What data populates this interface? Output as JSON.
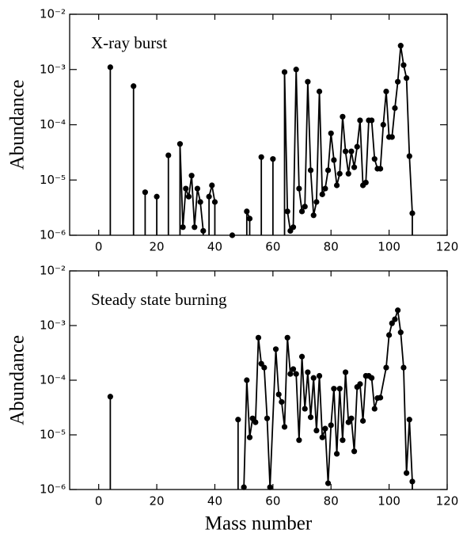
{
  "chart_data": [
    {
      "type": "line",
      "annotation": "X-ray burst",
      "ylabel": "Abundance",
      "log_y": true,
      "color": "#000000",
      "xlim": [
        -10,
        120
      ],
      "xticks": [
        0,
        20,
        40,
        60,
        80,
        100,
        120
      ],
      "ylim": [
        1e-06,
        0.01
      ],
      "yticks": [
        {
          "value": 1e-06,
          "label": "10⁻⁶"
        },
        {
          "value": 1e-05,
          "label": "10⁻⁵"
        },
        {
          "value": 0.0001,
          "label": "10⁻⁴"
        },
        {
          "value": 0.001,
          "label": "10⁻³"
        },
        {
          "value": 0.01,
          "label": "10⁻²"
        }
      ],
      "x": [
        4,
        8,
        12,
        14,
        16,
        18,
        20,
        22,
        24,
        26,
        28,
        29,
        30,
        31,
        32,
        33,
        34,
        35,
        36,
        37,
        38,
        39,
        40,
        43,
        46,
        48,
        51,
        52,
        54,
        56,
        58,
        60,
        62,
        64,
        65,
        66,
        67,
        68,
        69,
        70,
        71,
        72,
        73,
        74,
        75,
        76,
        77,
        78,
        79,
        80,
        81,
        82,
        83,
        84,
        85,
        86,
        87,
        88,
        89,
        90,
        91,
        92,
        93,
        94,
        95,
        96,
        97,
        98,
        99,
        100,
        101,
        102,
        103,
        104,
        105,
        106,
        107,
        108
      ],
      "values": [
        0.0011,
        null,
        0.0005,
        null,
        6e-06,
        null,
        5e-06,
        null,
        2.8e-05,
        null,
        4.5e-05,
        1.4e-06,
        7e-06,
        5e-06,
        1.2e-05,
        1.4e-06,
        7e-06,
        4e-06,
        1.2e-06,
        null,
        5e-06,
        8e-06,
        4e-06,
        null,
        1e-06,
        null,
        2.7e-06,
        2e-06,
        null,
        2.6e-05,
        null,
        2.4e-05,
        null,
        0.0009,
        2.7e-06,
        1.2e-06,
        1.4e-06,
        0.001,
        7e-06,
        2.7e-06,
        3.3e-06,
        0.0006,
        1.5e-05,
        2.3e-06,
        4e-06,
        0.0004,
        5.5e-06,
        7e-06,
        1.5e-05,
        7e-05,
        2.3e-05,
        8e-06,
        1.3e-05,
        0.00014,
        3.3e-05,
        1.3e-05,
        3.3e-05,
        1.7e-05,
        4e-05,
        0.00012,
        8e-06,
        9e-06,
        0.00012,
        0.00012,
        2.4e-05,
        1.6e-05,
        1.6e-05,
        0.0001,
        0.0004,
        6e-05,
        6e-05,
        0.0002,
        0.0006,
        0.0027,
        0.0012,
        0.0007,
        2.7e-05,
        2.5e-06
      ]
    },
    {
      "type": "line",
      "annotation": "Steady state burning",
      "ylabel": "Abundance",
      "xlabel": "Mass number",
      "log_y": true,
      "color": "#000000",
      "xlim": [
        -10,
        120
      ],
      "xticks": [
        0,
        20,
        40,
        60,
        80,
        100,
        120
      ],
      "ylim": [
        1e-06,
        0.01
      ],
      "yticks": [
        {
          "value": 1e-06,
          "label": "10⁻⁶"
        },
        {
          "value": 1e-05,
          "label": "10⁻⁵"
        },
        {
          "value": 0.0001,
          "label": "10⁻⁴"
        },
        {
          "value": 0.001,
          "label": "10⁻³"
        },
        {
          "value": 0.01,
          "label": "10⁻²"
        }
      ],
      "x": [
        4,
        26,
        48,
        49,
        50,
        51,
        52,
        53,
        54,
        55,
        56,
        57,
        58,
        59,
        61,
        62,
        63,
        64,
        65,
        66,
        67,
        68,
        69,
        70,
        71,
        72,
        73,
        74,
        75,
        76,
        77,
        78,
        79,
        80,
        81,
        82,
        83,
        84,
        85,
        86,
        87,
        88,
        89,
        90,
        91,
        92,
        93,
        94,
        95,
        96,
        97,
        99,
        100,
        101,
        102,
        103,
        104,
        105,
        106,
        107,
        108
      ],
      "values": [
        5e-05,
        null,
        1.9e-05,
        null,
        1.1e-06,
        0.0001,
        9e-06,
        2e-05,
        1.7e-05,
        0.0006,
        0.0002,
        0.00017,
        2e-05,
        1.1e-06,
        0.00037,
        5.5e-05,
        4e-05,
        1.4e-05,
        0.0006,
        0.00013,
        0.00016,
        0.00013,
        8e-06,
        0.00027,
        3e-05,
        0.00014,
        2.1e-05,
        0.00011,
        1.2e-05,
        0.00012,
        9e-06,
        1.3e-05,
        1.3e-06,
        1.5e-05,
        7e-05,
        4.5e-06,
        7e-05,
        8e-06,
        0.00014,
        1.7e-05,
        2e-05,
        5e-06,
        7.5e-05,
        8.5e-05,
        1.8e-05,
        0.00012,
        0.00012,
        0.00011,
        3e-05,
        4.7e-05,
        4.8e-05,
        0.00017,
        0.00067,
        0.0011,
        0.0013,
        0.0019,
        0.00075,
        0.00017,
        2e-06,
        1.9e-05,
        1.4e-06
      ]
    }
  ]
}
